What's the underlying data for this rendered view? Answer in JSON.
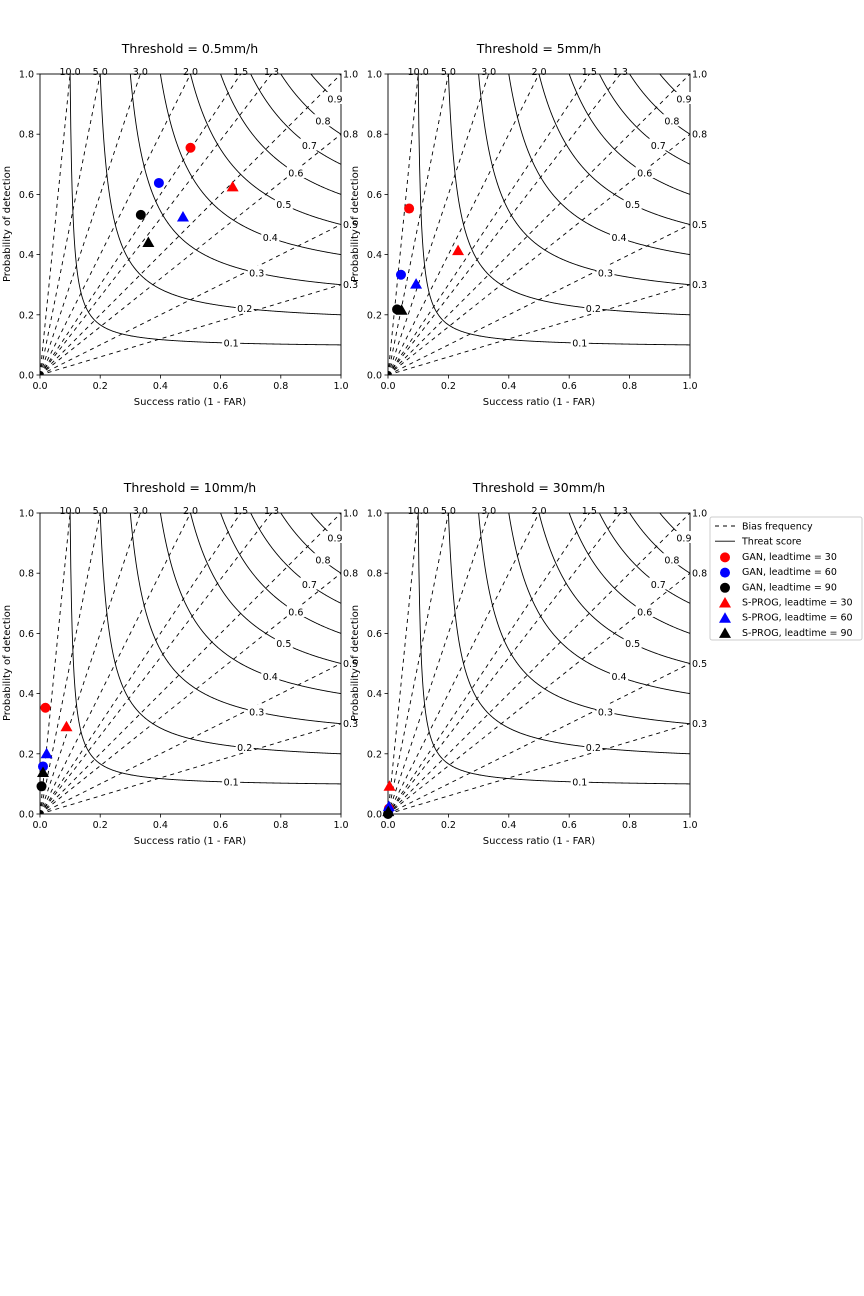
{
  "figure": {
    "legend": {
      "entries": [
        {
          "label": "Bias frequency",
          "kind": "dash"
        },
        {
          "label": "Threat score",
          "kind": "line"
        },
        {
          "label": "GAN, leadtime = 30",
          "kind": "circle",
          "color": "#ff0000"
        },
        {
          "label": "GAN, leadtime = 60",
          "kind": "circle",
          "color": "#0000ff"
        },
        {
          "label": "GAN, leadtime = 90",
          "kind": "circle",
          "color": "#000000"
        },
        {
          "label": "S-PROG, leadtime = 30",
          "kind": "triangle",
          "color": "#ff0000"
        },
        {
          "label": "S-PROG, leadtime = 60",
          "kind": "triangle",
          "color": "#0000ff"
        },
        {
          "label": "S-PROG, leadtime = 90",
          "kind": "triangle",
          "color": "#000000"
        }
      ]
    }
  },
  "chart_data": [
    {
      "type": "scatter",
      "title": "Threshold = 0.5mm/h",
      "xlabel": "Success ratio (1 - FAR)",
      "ylabel": "Probability of detection",
      "xlim": [
        0,
        1
      ],
      "ylim": [
        0,
        1
      ],
      "xticks": [
        "0.0",
        "0.2",
        "0.4",
        "0.6",
        "0.8",
        "1.0"
      ],
      "yticks": [
        "0.0",
        "0.2",
        "0.4",
        "0.6",
        "0.8",
        "1.0"
      ],
      "bias_labels": [
        "10.0",
        "5.0",
        "3.0",
        "2.0",
        "1.5",
        "1.3",
        "1.0",
        "0.8",
        "0.5",
        "0.3"
      ],
      "csi_labels": [
        "0.9",
        "0.8",
        "0.7",
        "0.6",
        "0.5",
        "0.4",
        "0.3",
        "0.2",
        "0.1"
      ],
      "series": [
        {
          "name": "GAN, leadtime = 30",
          "marker": "circle",
          "color": "#ff0000",
          "x": [
            0.5
          ],
          "y": [
            0.755
          ]
        },
        {
          "name": "GAN, leadtime = 60",
          "marker": "circle",
          "color": "#0000ff",
          "x": [
            0.395
          ],
          "y": [
            0.638
          ]
        },
        {
          "name": "GAN, leadtime = 90",
          "marker": "circle",
          "color": "#000000",
          "x": [
            0.335
          ],
          "y": [
            0.532
          ]
        },
        {
          "name": "S-PROG, leadtime = 30",
          "marker": "triangle",
          "color": "#ff0000",
          "x": [
            0.64
          ],
          "y": [
            0.625
          ]
        },
        {
          "name": "S-PROG, leadtime = 60",
          "marker": "triangle",
          "color": "#0000ff",
          "x": [
            0.475
          ],
          "y": [
            0.525
          ]
        },
        {
          "name": "S-PROG, leadtime = 90",
          "marker": "triangle",
          "color": "#000000",
          "x": [
            0.36
          ],
          "y": [
            0.44
          ]
        }
      ]
    },
    {
      "type": "scatter",
      "title": "Threshold = 5mm/h",
      "xlabel": "Success ratio (1 - FAR)",
      "ylabel": "Probability of detection",
      "xlim": [
        0,
        1
      ],
      "ylim": [
        0,
        1
      ],
      "xticks": [
        "0.0",
        "0.2",
        "0.4",
        "0.6",
        "0.8",
        "1.0"
      ],
      "yticks": [
        "0.0",
        "0.2",
        "0.4",
        "0.6",
        "0.8",
        "1.0"
      ],
      "bias_labels": [
        "10.0",
        "5.0",
        "3.0",
        "2.0",
        "1.5",
        "1.3",
        "1.0",
        "0.8",
        "0.5",
        "0.3"
      ],
      "csi_labels": [
        "0.9",
        "0.8",
        "0.7",
        "0.6",
        "0.5",
        "0.4",
        "0.3",
        "0.2",
        "0.1"
      ],
      "series": [
        {
          "name": "GAN, leadtime = 30",
          "marker": "circle",
          "color": "#ff0000",
          "x": [
            0.07
          ],
          "y": [
            0.553
          ]
        },
        {
          "name": "GAN, leadtime = 60",
          "marker": "circle",
          "color": "#0000ff",
          "x": [
            0.043
          ],
          "y": [
            0.333
          ]
        },
        {
          "name": "GAN, leadtime = 90",
          "marker": "circle",
          "color": "#000000",
          "x": [
            0.03
          ],
          "y": [
            0.218
          ]
        },
        {
          "name": "S-PROG, leadtime = 30",
          "marker": "triangle",
          "color": "#ff0000",
          "x": [
            0.232
          ],
          "y": [
            0.413
          ]
        },
        {
          "name": "S-PROG, leadtime = 60",
          "marker": "triangle",
          "color": "#0000ff",
          "x": [
            0.093
          ],
          "y": [
            0.302
          ]
        },
        {
          "name": "S-PROG, leadtime = 90",
          "marker": "triangle",
          "color": "#000000",
          "x": [
            0.045
          ],
          "y": [
            0.215
          ]
        }
      ]
    },
    {
      "type": "scatter",
      "title": "Threshold = 10mm/h",
      "xlabel": "Success ratio (1 - FAR)",
      "ylabel": "Probability of detection",
      "xlim": [
        0,
        1
      ],
      "ylim": [
        0,
        1
      ],
      "xticks": [
        "0.0",
        "0.2",
        "0.4",
        "0.6",
        "0.8",
        "1.0"
      ],
      "yticks": [
        "0.0",
        "0.2",
        "0.4",
        "0.6",
        "0.8",
        "1.0"
      ],
      "bias_labels": [
        "10.0",
        "5.0",
        "3.0",
        "2.0",
        "1.5",
        "1.3",
        "1.0",
        "0.8",
        "0.5",
        "0.3"
      ],
      "csi_labels": [
        "0.9",
        "0.8",
        "0.7",
        "0.6",
        "0.5",
        "0.4",
        "0.3",
        "0.2",
        "0.1"
      ],
      "series": [
        {
          "name": "GAN, leadtime = 30",
          "marker": "circle",
          "color": "#ff0000",
          "x": [
            0.018
          ],
          "y": [
            0.353
          ]
        },
        {
          "name": "GAN, leadtime = 60",
          "marker": "circle",
          "color": "#0000ff",
          "x": [
            0.01
          ],
          "y": [
            0.158
          ]
        },
        {
          "name": "GAN, leadtime = 90",
          "marker": "circle",
          "color": "#000000",
          "x": [
            0.005
          ],
          "y": [
            0.092
          ]
        },
        {
          "name": "S-PROG, leadtime = 30",
          "marker": "triangle",
          "color": "#ff0000",
          "x": [
            0.088
          ],
          "y": [
            0.29
          ]
        },
        {
          "name": "S-PROG, leadtime = 60",
          "marker": "triangle",
          "color": "#0000ff",
          "x": [
            0.022
          ],
          "y": [
            0.2
          ]
        },
        {
          "name": "S-PROG, leadtime = 90",
          "marker": "triangle",
          "color": "#000000",
          "x": [
            0.01
          ],
          "y": [
            0.138
          ]
        }
      ]
    },
    {
      "type": "scatter",
      "title": "Threshold = 30mm/h",
      "xlabel": "Success ratio (1 - FAR)",
      "ylabel": "Probability of detection",
      "xlim": [
        0,
        1
      ],
      "ylim": [
        0,
        1
      ],
      "xticks": [
        "0.0",
        "0.2",
        "0.4",
        "0.6",
        "0.8",
        "1.0"
      ],
      "yticks": [
        "0.0",
        "0.2",
        "0.4",
        "0.6",
        "0.8",
        "1.0"
      ],
      "bias_labels": [
        "10.0",
        "5.0",
        "3.0",
        "2.0",
        "1.5",
        "1.3",
        "1.0",
        "0.8",
        "0.5",
        "0.3"
      ],
      "csi_labels": [
        "0.9",
        "0.8",
        "0.7",
        "0.6",
        "0.5",
        "0.4",
        "0.3",
        "0.2",
        "0.1"
      ],
      "series": [
        {
          "name": "GAN, leadtime = 30",
          "marker": "circle",
          "color": "#ff0000",
          "x": [
            0.003
          ],
          "y": [
            0.018
          ]
        },
        {
          "name": "GAN, leadtime = 60",
          "marker": "circle",
          "color": "#0000ff",
          "x": [
            0.002
          ],
          "y": [
            0.012
          ]
        },
        {
          "name": "GAN, leadtime = 90",
          "marker": "circle",
          "color": "#000000",
          "x": [
            0.0
          ],
          "y": [
            0.0
          ]
        },
        {
          "name": "S-PROG, leadtime = 30",
          "marker": "triangle",
          "color": "#ff0000",
          "x": [
            0.005
          ],
          "y": [
            0.092
          ]
        },
        {
          "name": "S-PROG, leadtime = 60",
          "marker": "triangle",
          "color": "#0000ff",
          "x": [
            0.003
          ],
          "y": [
            0.025
          ]
        },
        {
          "name": "S-PROG, leadtime = 90",
          "marker": "triangle",
          "color": "#000000",
          "x": [
            0.001
          ],
          "y": [
            0.008
          ]
        }
      ]
    }
  ]
}
